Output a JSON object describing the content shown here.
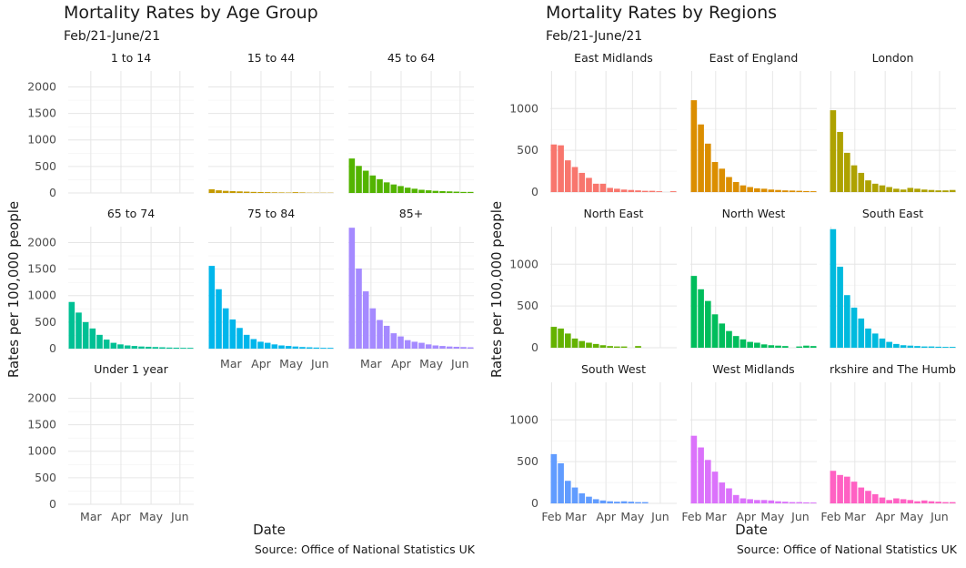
{
  "chart_data": [
    {
      "type": "bar",
      "title": "Mortality Rates by Age Group",
      "subtitle": "Feb/21-June/21",
      "xlabel": "Date",
      "ylabel": "Rates per 100,000 people",
      "caption": "Source: Office of National Statistics UK",
      "ylim": [
        0,
        2300
      ],
      "y_ticks": [
        "0",
        "500",
        "1000",
        "1500",
        "2000"
      ],
      "x_ticks": [
        "Mar",
        "Apr",
        "May",
        "Jun"
      ],
      "grid": true,
      "facets": [
        {
          "name": "1 to 14",
          "color": "#e6e6e6",
          "values": [
            0,
            0,
            0,
            0,
            0,
            0,
            0,
            0,
            0,
            0,
            0,
            0,
            0,
            0,
            0,
            0,
            0,
            0
          ]
        },
        {
          "name": "15 to 44",
          "color": "#c49a00",
          "values": [
            70,
            50,
            40,
            35,
            30,
            25,
            20,
            18,
            15,
            12,
            10,
            8,
            15,
            10,
            5,
            5,
            5,
            5
          ]
        },
        {
          "name": "45 to 64",
          "color": "#53b400",
          "values": [
            650,
            510,
            420,
            330,
            260,
            200,
            160,
            130,
            100,
            80,
            60,
            50,
            40,
            35,
            30,
            25,
            20,
            20
          ]
        },
        {
          "name": "65 to 74",
          "color": "#00c094",
          "values": [
            880,
            680,
            500,
            380,
            260,
            170,
            110,
            80,
            60,
            50,
            40,
            35,
            30,
            25,
            20,
            18,
            15,
            15
          ]
        },
        {
          "name": "75 to 84",
          "color": "#00b6eb",
          "values": [
            1560,
            1120,
            760,
            550,
            390,
            260,
            180,
            130,
            110,
            80,
            60,
            50,
            40,
            30,
            25,
            20,
            15,
            15
          ]
        },
        {
          "name": "85+",
          "color": "#a58aff",
          "values": [
            2280,
            1510,
            1080,
            760,
            540,
            430,
            290,
            230,
            160,
            130,
            110,
            80,
            60,
            50,
            40,
            35,
            30,
            25
          ]
        },
        {
          "name": "Under 1 year",
          "color": "#fb61d7",
          "values": [
            0,
            0,
            0,
            0,
            0,
            0,
            0,
            0,
            0,
            0,
            0,
            0,
            0,
            0,
            0,
            0,
            0,
            0
          ]
        }
      ]
    },
    {
      "type": "bar",
      "title": "Mortality Rates by Regions",
      "subtitle": "Feb/21-June/21",
      "xlabel": "Date",
      "ylabel": "Rates per 100,000 people",
      "caption": "Source: Office of National Statistics UK",
      "ylim": [
        0,
        1450
      ],
      "y_ticks": [
        "0",
        "500",
        "1000"
      ],
      "x_ticks": [
        "Feb",
        "Mar",
        "Apr",
        "May",
        "Jun"
      ],
      "grid": true,
      "facets": [
        {
          "name": "East Midlands",
          "color": "#f8766d",
          "values": [
            570,
            560,
            380,
            300,
            230,
            170,
            100,
            100,
            50,
            40,
            30,
            25,
            20,
            15,
            15,
            10,
            0,
            10
          ]
        },
        {
          "name": "East of England",
          "color": "#db8e00",
          "values": [
            1100,
            810,
            580,
            360,
            280,
            180,
            120,
            80,
            60,
            45,
            40,
            30,
            25,
            20,
            18,
            15,
            12,
            10
          ]
        },
        {
          "name": "London",
          "color": "#aea200",
          "values": [
            980,
            720,
            470,
            320,
            230,
            140,
            100,
            80,
            60,
            40,
            30,
            50,
            40,
            30,
            25,
            20,
            20,
            25
          ]
        },
        {
          "name": "North East",
          "color": "#64b200",
          "values": [
            250,
            230,
            170,
            110,
            80,
            60,
            45,
            30,
            20,
            15,
            15,
            0,
            20,
            0,
            0,
            0,
            0,
            0
          ]
        },
        {
          "name": "North West",
          "color": "#00bd5c",
          "values": [
            860,
            700,
            560,
            400,
            290,
            200,
            140,
            100,
            70,
            60,
            40,
            30,
            25,
            20,
            0,
            15,
            25,
            20
          ]
        },
        {
          "name": "South East",
          "color": "#00bade",
          "values": [
            1420,
            970,
            630,
            480,
            350,
            230,
            170,
            110,
            70,
            45,
            30,
            25,
            20,
            15,
            15,
            12,
            10,
            10
          ]
        },
        {
          "name": "South West",
          "color": "#619cff",
          "values": [
            590,
            480,
            270,
            190,
            120,
            80,
            50,
            35,
            25,
            20,
            25,
            20,
            15,
            15,
            0,
            0,
            0,
            0
          ]
        },
        {
          "name": "West Midlands",
          "color": "#db72fb",
          "values": [
            810,
            670,
            520,
            380,
            250,
            180,
            100,
            60,
            50,
            40,
            40,
            35,
            25,
            20,
            15,
            15,
            12,
            10
          ]
        },
        {
          "name": "rkshire and The Humb",
          "color": "#ff61c3",
          "values": [
            390,
            340,
            320,
            260,
            190,
            150,
            110,
            70,
            40,
            60,
            50,
            40,
            25,
            35,
            25,
            20,
            15,
            15
          ]
        }
      ]
    }
  ]
}
